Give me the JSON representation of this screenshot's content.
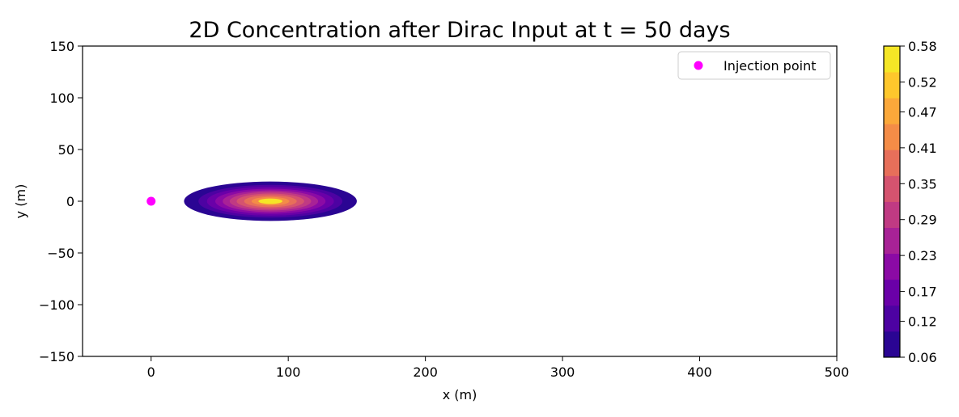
{
  "chart_data": {
    "type": "contourf",
    "title": "2D Concentration after Dirac Input at t = 50 days",
    "xlabel": "x (m)",
    "ylabel": "y (m)",
    "xlim": [
      -50,
      500
    ],
    "ylim": [
      -150,
      150
    ],
    "xticks": [
      0,
      100,
      200,
      300,
      400,
      500
    ],
    "yticks": [
      150,
      100,
      50,
      0,
      -50,
      -100,
      -150
    ],
    "xtick_labels": [
      "0",
      "100",
      "200",
      "300",
      "400",
      "500"
    ],
    "ytick_labels": [
      "150",
      "100",
      "50",
      "0",
      "−50",
      "−100",
      "−150"
    ],
    "colormap": "plasma",
    "plume": {
      "center_x": 87,
      "center_y": 0,
      "half_extent_x": 63,
      "half_extent_y": 19,
      "peak_value": 0.58
    },
    "contour_levels": [
      0.06,
      0.12,
      0.17,
      0.23,
      0.29,
      0.35,
      0.41,
      0.47,
      0.52,
      0.58
    ],
    "colorbar_tick_labels": [
      "0.58",
      "0.52",
      "0.47",
      "0.41",
      "0.35",
      "0.29",
      "0.23",
      "0.17",
      "0.12",
      "0.06"
    ],
    "band_colors": [
      "#2a0593",
      "#4d02a2",
      "#6a00a8",
      "#8b0aa5",
      "#a82296",
      "#c03a83",
      "#d5536f",
      "#e76f5a",
      "#f48c47",
      "#fba83a",
      "#fec72c",
      "#f5e626"
    ],
    "injection_point": {
      "x": 0,
      "y": 0,
      "label": "Injection point",
      "color": "#ff00ff"
    },
    "legend_location": "upper right"
  }
}
